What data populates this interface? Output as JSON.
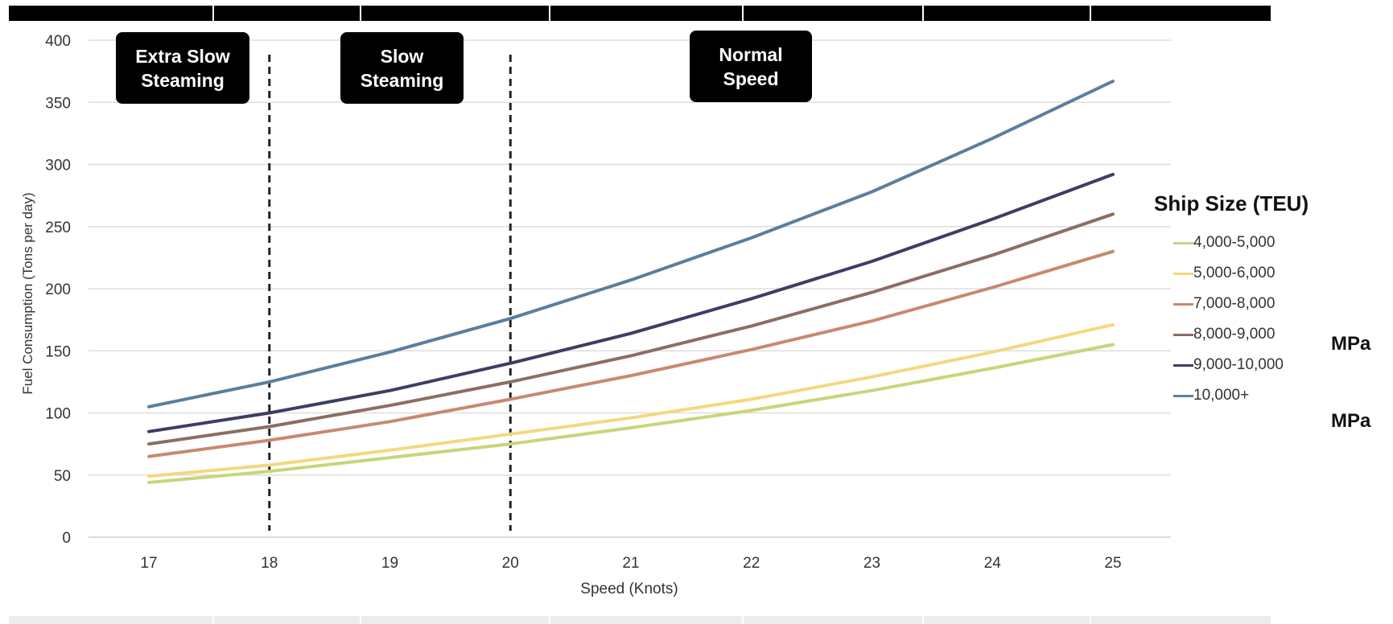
{
  "chart_data": {
    "type": "line",
    "title": "",
    "xlabel": "Speed (Knots)",
    "ylabel": "Fuel Consumption (Tons per day)",
    "x": [
      17,
      18,
      19,
      20,
      21,
      22,
      23,
      24,
      25
    ],
    "ylim": [
      0,
      400
    ],
    "yticks": [
      0,
      50,
      100,
      150,
      200,
      250,
      300,
      350,
      400
    ],
    "grid": "horizontal",
    "legend_title": "Ship Size (TEU)",
    "legend_position": "right",
    "series": [
      {
        "name": "4,000-5,000",
        "color": "#c8d57a",
        "values": [
          44,
          53,
          64,
          75,
          88,
          102,
          118,
          136,
          155
        ]
      },
      {
        "name": "5,000-6,000",
        "color": "#f6d77f",
        "values": [
          49,
          58,
          70,
          83,
          96,
          111,
          129,
          149,
          171
        ]
      },
      {
        "name": "7,000-8,000",
        "color": "#c8896f",
        "values": [
          65,
          78,
          93,
          111,
          130,
          151,
          174,
          201,
          230
        ]
      },
      {
        "name": "8,000-9,000",
        "color": "#8b6e63",
        "values": [
          75,
          89,
          106,
          125,
          146,
          170,
          197,
          227,
          260
        ]
      },
      {
        "name": "9,000-10,000",
        "color": "#3c3e63",
        "values": [
          85,
          100,
          118,
          140,
          164,
          192,
          222,
          256,
          292
        ]
      },
      {
        "name": "10,000+",
        "color": "#5b7e9e",
        "values": [
          105,
          125,
          149,
          176,
          207,
          241,
          278,
          321,
          367
        ]
      }
    ],
    "vlines": [
      18,
      20
    ],
    "phases": [
      {
        "label": "Extra Slow\nSteaming"
      },
      {
        "label": "Slow\nSteaming"
      },
      {
        "label": "Normal\nSpeed"
      }
    ]
  },
  "edge_text": [
    "MPa",
    "MPa"
  ]
}
